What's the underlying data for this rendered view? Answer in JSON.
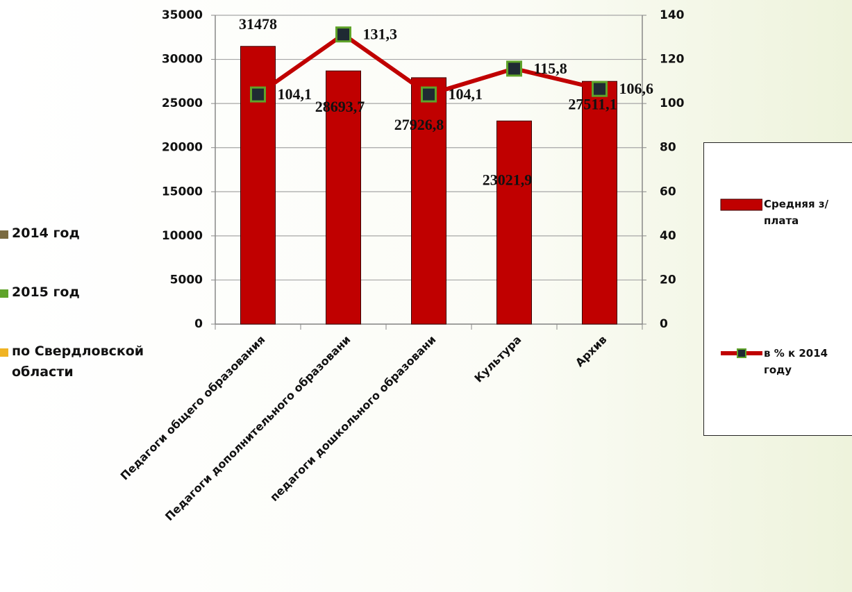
{
  "chart_data": {
    "type": "bar_line",
    "categories": [
      "Педагоги общего образования",
      "Педагоги дополнительного образовани",
      "педагоги дошкольного образовани",
      "Культура",
      "Архив"
    ],
    "series": [
      {
        "name": "Средняя з/плата",
        "type": "bar",
        "color": "#c00000",
        "values": [
          31478,
          28693.7,
          27926.8,
          23021.9,
          27511.1
        ],
        "value_labels": [
          "31478",
          "28693,7",
          "27926,8",
          "23021,9",
          "27511,1"
        ]
      },
      {
        "name": "в % к 2014 году",
        "type": "line",
        "axis": "y2",
        "color": "#c00000",
        "marker_color": "#1f2a33",
        "marker_edge": "#5fa32a",
        "values": [
          104.1,
          131.3,
          104.1,
          115.8,
          106.6
        ],
        "value_labels": [
          "104,1",
          "131,3",
          "104,1",
          "115,8",
          "106,6"
        ]
      }
    ],
    "ylim": [
      0,
      35000
    ],
    "yticks": [
      0,
      5000,
      10000,
      15000,
      20000,
      25000,
      30000,
      35000
    ],
    "y2lim": [
      0,
      140
    ],
    "y2ticks": [
      0,
      20,
      40,
      60,
      80,
      100,
      120,
      140
    ],
    "grid": true,
    "extra_legend": [
      {
        "name": "2014 год",
        "color": "#7a6a40"
      },
      {
        "name": "2015 год",
        "color": "#5fa32a"
      },
      {
        "name": "по Свердловской области",
        "color": "#f0b323"
      }
    ]
  }
}
